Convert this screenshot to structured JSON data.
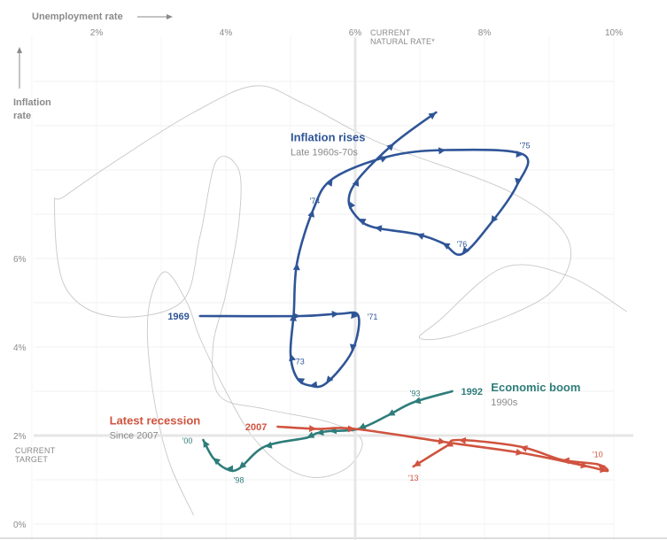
{
  "chart_data": {
    "type": "line",
    "xlabel": "Unemployment rate",
    "ylabel": "Inflation rate",
    "xlim": [
      0.8,
      10.6
    ],
    "ylim": [
      0,
      10.5
    ],
    "x_ticks": [
      {
        "value": 2,
        "label": "2%"
      },
      {
        "value": 4,
        "label": "4%"
      },
      {
        "value": 6,
        "label": "6%"
      },
      {
        "value": 8,
        "label": "8%"
      },
      {
        "value": 10,
        "label": "10%"
      }
    ],
    "y_ticks": [
      {
        "value": 0,
        "label": "0%"
      },
      {
        "value": 2,
        "label": "2%"
      },
      {
        "value": 4,
        "label": "4%"
      },
      {
        "value": 6,
        "label": "6%"
      }
    ],
    "reference_lines": [
      {
        "axis": "x",
        "value": 6,
        "label_line1": "CURRENT",
        "label_line2": "NATURAL RATE*"
      },
      {
        "axis": "y",
        "value": 2,
        "label_line1": "CURRENT",
        "label_line2": "TARGET"
      }
    ],
    "background_path": [
      [
        3.5,
        0.2
      ],
      [
        3.1,
        1.5
      ],
      [
        2.85,
        3.2
      ],
      [
        2.8,
        4.8
      ],
      [
        3.05,
        5.7
      ],
      [
        3.4,
        5.0
      ],
      [
        3.6,
        4.2
      ],
      [
        4.0,
        3.0
      ],
      [
        4.4,
        2.0
      ],
      [
        4.9,
        1.3
      ],
      [
        5.4,
        1.05
      ],
      [
        5.9,
        1.3
      ],
      [
        6.1,
        1.9
      ],
      [
        5.6,
        2.3
      ],
      [
        4.6,
        2.6
      ],
      [
        3.9,
        2.9
      ],
      [
        3.8,
        4.0
      ],
      [
        4.0,
        5.2
      ],
      [
        4.2,
        6.8
      ],
      [
        4.2,
        8.0
      ],
      [
        3.85,
        8.2
      ],
      [
        3.6,
        6.5
      ],
      [
        3.3,
        5.0
      ],
      [
        2.2,
        4.7
      ],
      [
        1.5,
        5.4
      ],
      [
        1.35,
        7.2
      ],
      [
        1.5,
        7.4
      ],
      [
        2.4,
        8.3
      ],
      [
        3.5,
        9.3
      ],
      [
        4.45,
        9.9
      ],
      [
        5.2,
        9.5
      ],
      [
        6.4,
        8.6
      ],
      [
        8.4,
        7.5
      ],
      [
        9.3,
        6.4
      ],
      [
        9.0,
        5.2
      ],
      [
        7.6,
        4.3
      ],
      [
        7.0,
        4.2
      ],
      [
        7.3,
        4.6
      ],
      [
        8.3,
        5.8
      ],
      [
        9.3,
        5.6
      ],
      [
        10.2,
        4.8
      ]
    ],
    "series": [
      {
        "name": "Inflation rises",
        "subtitle": "Late 1960s-70s",
        "color": "#2f5597",
        "points": [
          [
            3.6,
            4.7
          ],
          [
            5.15,
            4.7
          ],
          [
            5.75,
            4.75
          ],
          [
            6.05,
            4.7
          ],
          [
            5.95,
            3.9
          ],
          [
            5.55,
            3.18
          ],
          [
            5.3,
            3.13
          ],
          [
            5.1,
            3.3
          ],
          [
            5.0,
            3.85
          ],
          [
            5.05,
            4.75
          ],
          [
            5.1,
            5.9
          ],
          [
            5.35,
            7.1
          ],
          [
            5.65,
            7.8
          ],
          [
            6.5,
            8.3
          ],
          [
            7.4,
            8.45
          ],
          [
            8.6,
            8.35
          ],
          [
            8.5,
            7.65
          ],
          [
            8.1,
            6.8
          ],
          [
            7.65,
            6.1
          ],
          [
            7.35,
            6.35
          ],
          [
            6.95,
            6.55
          ],
          [
            6.3,
            6.7
          ],
          [
            6.05,
            6.9
          ],
          [
            5.9,
            7.3
          ],
          [
            6.05,
            7.8
          ],
          [
            6.6,
            8.6
          ],
          [
            7.25,
            9.3
          ]
        ],
        "year_labels": [
          {
            "text": "1969",
            "x": 3.6,
            "y": 4.7,
            "pos": "left"
          },
          {
            "text": "'71",
            "x": 6.05,
            "y": 4.7,
            "pos": "right"
          },
          {
            "text": "'73",
            "x": 5.0,
            "y": 3.85,
            "pos": "right-below"
          },
          {
            "text": "'74",
            "x": 5.35,
            "y": 7.1,
            "pos": "above-left"
          },
          {
            "text": "'75",
            "x": 8.6,
            "y": 8.35,
            "pos": "above-left"
          },
          {
            "text": "'76",
            "x": 7.65,
            "y": 6.1,
            "pos": "above"
          }
        ]
      },
      {
        "name": "Economic boom",
        "subtitle": "1990s",
        "color": "#2e7d7a",
        "points": [
          [
            7.5,
            3.0
          ],
          [
            6.9,
            2.75
          ],
          [
            6.5,
            2.45
          ],
          [
            6.05,
            2.15
          ],
          [
            5.6,
            2.1
          ],
          [
            5.4,
            2.05
          ],
          [
            5.25,
            1.95
          ],
          [
            4.6,
            1.75
          ],
          [
            4.2,
            1.25
          ],
          [
            4.0,
            1.25
          ],
          [
            3.8,
            1.5
          ],
          [
            3.65,
            1.9
          ]
        ],
        "year_labels": [
          {
            "text": "1992",
            "x": 7.5,
            "y": 3.0,
            "pos": "right"
          },
          {
            "text": "'93",
            "x": 6.9,
            "y": 2.75,
            "pos": "above-left"
          },
          {
            "text": "'98",
            "x": 4.2,
            "y": 1.25,
            "pos": "below"
          },
          {
            "text": "'00",
            "x": 3.65,
            "y": 1.9,
            "pos": "left"
          }
        ]
      },
      {
        "name": "Latest recession",
        "subtitle": "Since 2007",
        "color": "#d0533f",
        "points": [
          [
            4.8,
            2.2
          ],
          [
            5.4,
            2.15
          ],
          [
            6.0,
            2.15
          ],
          [
            7.4,
            1.85
          ],
          [
            8.6,
            1.6
          ],
          [
            9.6,
            1.3
          ],
          [
            9.9,
            1.2
          ],
          [
            9.75,
            1.35
          ],
          [
            9.2,
            1.45
          ],
          [
            8.55,
            1.75
          ],
          [
            7.6,
            1.9
          ],
          [
            7.4,
            1.75
          ],
          [
            6.9,
            1.3
          ]
        ],
        "year_labels": [
          {
            "text": "2007",
            "x": 4.8,
            "y": 2.2,
            "pos": "left"
          },
          {
            "text": "'10",
            "x": 9.75,
            "y": 1.35,
            "pos": "above"
          },
          {
            "text": "'13",
            "x": 6.9,
            "y": 1.3,
            "pos": "below"
          }
        ]
      }
    ],
    "series_labels": [
      {
        "series": 0,
        "x": 5.0,
        "y": 8.65
      },
      {
        "series": 1,
        "x": 8.1,
        "y": 3.0
      },
      {
        "series": 2,
        "x": 2.2,
        "y": 2.25
      }
    ]
  }
}
